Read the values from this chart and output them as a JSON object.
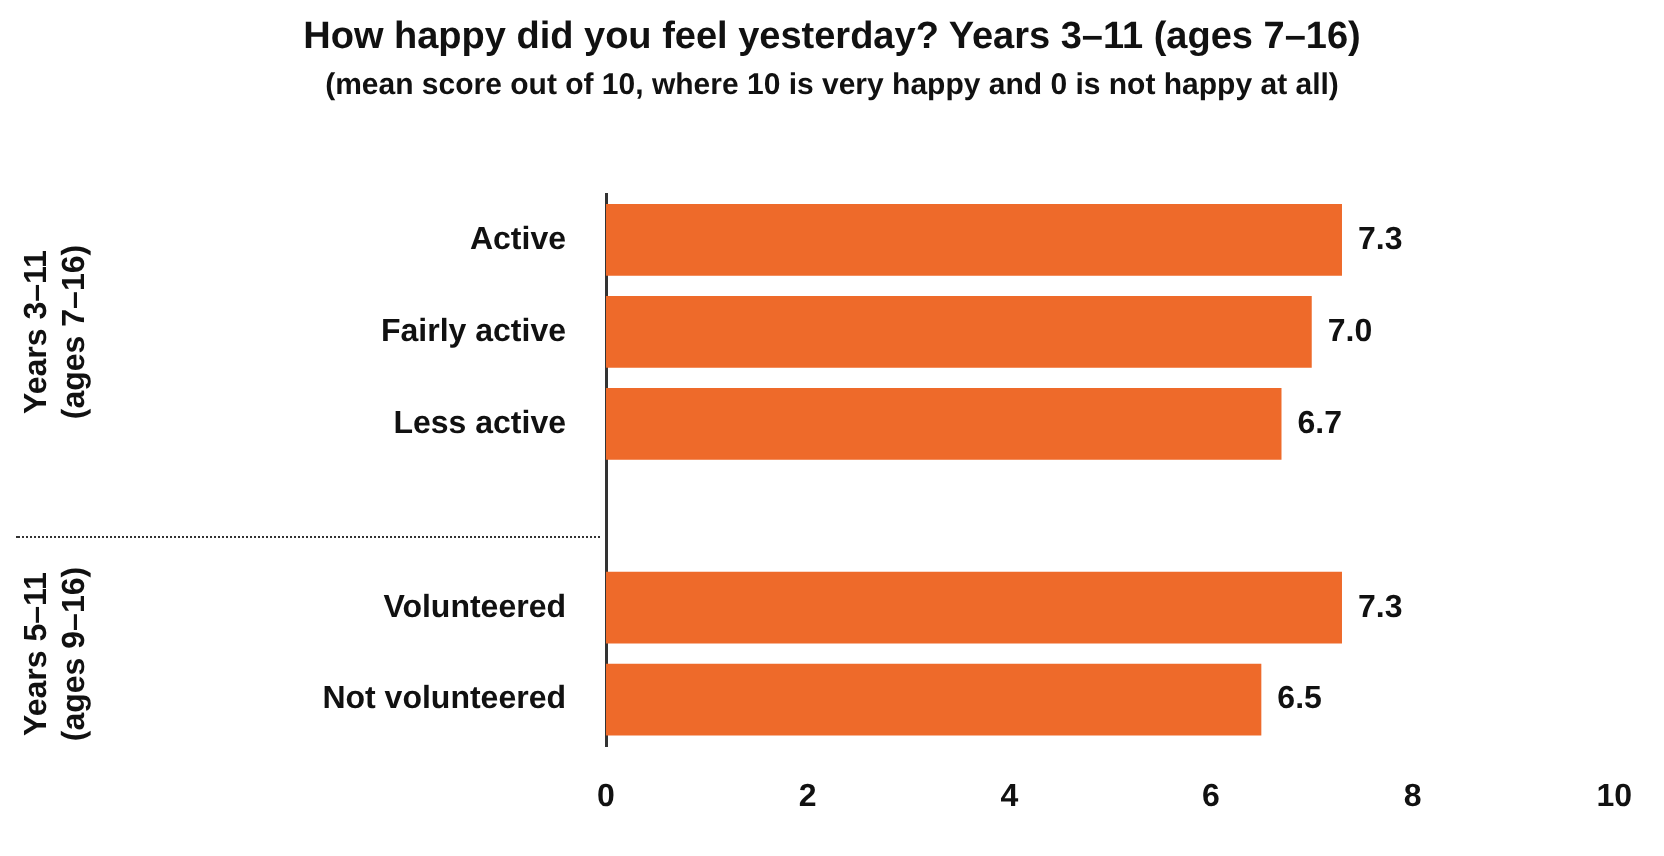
{
  "chart_data": {
    "type": "bar",
    "orientation": "horizontal",
    "title": "How happy did you feel yesterday? Years 3–11 (ages 7–16)",
    "subtitle": "(mean score out of 10, where 10 is very happy and 0 is not happy at all)",
    "categories": [
      "Active",
      "Fairly active",
      "Less active",
      null,
      "Volunteered",
      "Not volunteered"
    ],
    "values": [
      7.3,
      7.0,
      6.7,
      null,
      7.3,
      6.5
    ],
    "value_labels": [
      "7.3",
      "7.0",
      "6.7",
      null,
      "7.3",
      "6.5"
    ],
    "color": "#ee6a2a",
    "xlim": [
      0,
      10
    ],
    "xticks": [
      0,
      2,
      4,
      6,
      8,
      10
    ],
    "grid": false,
    "legend": false,
    "annotations": [
      "Years 3–11\n(ages 7–16)",
      "Years 5–11\n(ages 9–16)"
    ]
  }
}
